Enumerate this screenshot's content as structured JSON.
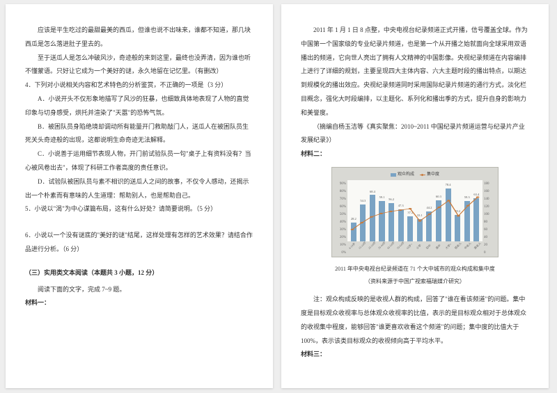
{
  "left": {
    "p1": "应该是平生吃过的最甜最美的西瓜，但谁也说不出味来，谁都不知道，那几块西瓜是怎么落进肚子里去的。",
    "p2": "至于送瓜人是怎么冲破风沙，奇迹般的来到这里，最终也没弄清，因为谁也听不懂蒙语。只好让它成为一个美好的谜，永久地留在记忆里。（有删改）",
    "q4": "4．下列对小说相关内容和艺术特色的分析鉴赏，不正确的一项是（3 分）",
    "q4a": "A．小说开头不仅形象地描写了风沙的狂暴，也细致具体地表现了人物的直觉印象与切身感受，烘托并渲染了\"天嚣\"的恐怖气氛。",
    "q4b": "B．被困队员身陷绝境却调动所有能量开门救助敲门人，送瓜人在被困队员生死关头奇迹般的出现，这都说明生命奇迹无法解释。",
    "q4c": "C．小说善于运用细节表现人物，开门前试验队员一句\"桌子上有资料没有？当心被风卷出去\"，体现了科研工作者高度的责任意识。",
    "q4d": "D．试验队被困队员与素不相识的送瓜人之间的故事，不仅令人感动，还揭示出一个朴素而有意味的人生道理：帮助别人，也是帮助自己。",
    "q5": "5．小说以\"渴\"为中心谋篇布局，这有什么好处？请简要说明。（5 分）",
    "q6": "6．小说以一个没有谜底的\"美好的谜\"结尾，这样处理有怎样的艺术效果？请结合作品进行分析。（6 分）",
    "section3": "（三）实用类文本阅读（本题共 3 小题，12 分）",
    "read_prompt": "阅读下面的文字，完成 7~9 题。",
    "mat1_label": "材料一："
  },
  "right": {
    "p1": "2011 年 1 月 1 日 8 点整，中央电视台纪录频道正式开播，信号覆盖全球。作为中国第一个国家级的专业纪录片频道，也是第一个从开播之始就面向全球采用双语播出的频道，它向世人亮出了拥有人文精神的中国影像。央视纪录频道在内容编排上进行了详细的规划，主要呈现四大主体内容、六大主题时段的播出特点，以期达到规模化的播出效应。央视纪录频道同时采用国际纪录片频道的通行方式，淡化栏目概念，强化大时段编排，以主题化、系列化和播出季的方式，提升自身的影响力和美誉度。",
    "src1": "（摘编自杨玉洁等《真实聚焦：2010~2011 中国纪录片频道运营与纪录片产业发展纪录》）",
    "mat2_label": "材料二：",
    "chart": {
      "type": "bar+line",
      "legend_bar": "观众构成",
      "legend_line": "集中度",
      "y_left_ticks": [
        "90%",
        "80%",
        "70%",
        "60%",
        "50%",
        "40%",
        "30%",
        "20%",
        "10%",
        "0%"
      ],
      "y_right_ticks": [
        "180",
        "160",
        "140",
        "120",
        "100",
        "80",
        "60",
        "40",
        "20",
        "0"
      ],
      "categories": [
        "4-14岁",
        "15-24岁",
        "25-34岁",
        "35-44岁",
        "45-54岁",
        "55-64岁",
        "65岁+",
        "小学",
        "初中",
        "高中",
        "大学+",
        "低收入",
        "中收入",
        "高收入"
      ],
      "bar_values_pct": [
        28,
        54,
        68,
        59,
        56,
        47,
        37,
        33,
        44,
        60,
        78,
        39,
        59,
        63
      ],
      "bar_labels": [
        "28.2",
        "54.3",
        "68.4",
        "59.1",
        "56.2",
        "47.3",
        "37.2",
        "33.1",
        "44.2",
        "60.3",
        "78.4",
        "39.2",
        "59.3",
        "63.4"
      ],
      "line_values_pct": [
        35,
        55,
        72,
        82,
        88,
        92,
        96,
        60,
        80,
        100,
        120,
        75,
        105,
        130
      ],
      "bar_color": "#7aa3c4",
      "line_color": "#c97b3d",
      "bg_color": "#d9d9d4",
      "plot_bg": "#f9f9f6"
    },
    "caption": "2011 年中央电视台纪录频道在 71 个大中城市的观众构成和集中度",
    "caption_sub": "（资料来源于中国广视索福瑞媒介研究）",
    "note": "注：观众构成反映的是收视人群的构成，回答了\"谁在看该频道\"的问题。集中度是目标观众收视率与总体观众收视率的比值，表示的是目标观众相对于总体观众的收视集中程度，能够回答\"谁更喜欢收看这个频道\"的问题；集中度的比值大于 100%，表示该类目标观众的收视倾向高于平均水平。",
    "mat3_label": "材料三："
  }
}
